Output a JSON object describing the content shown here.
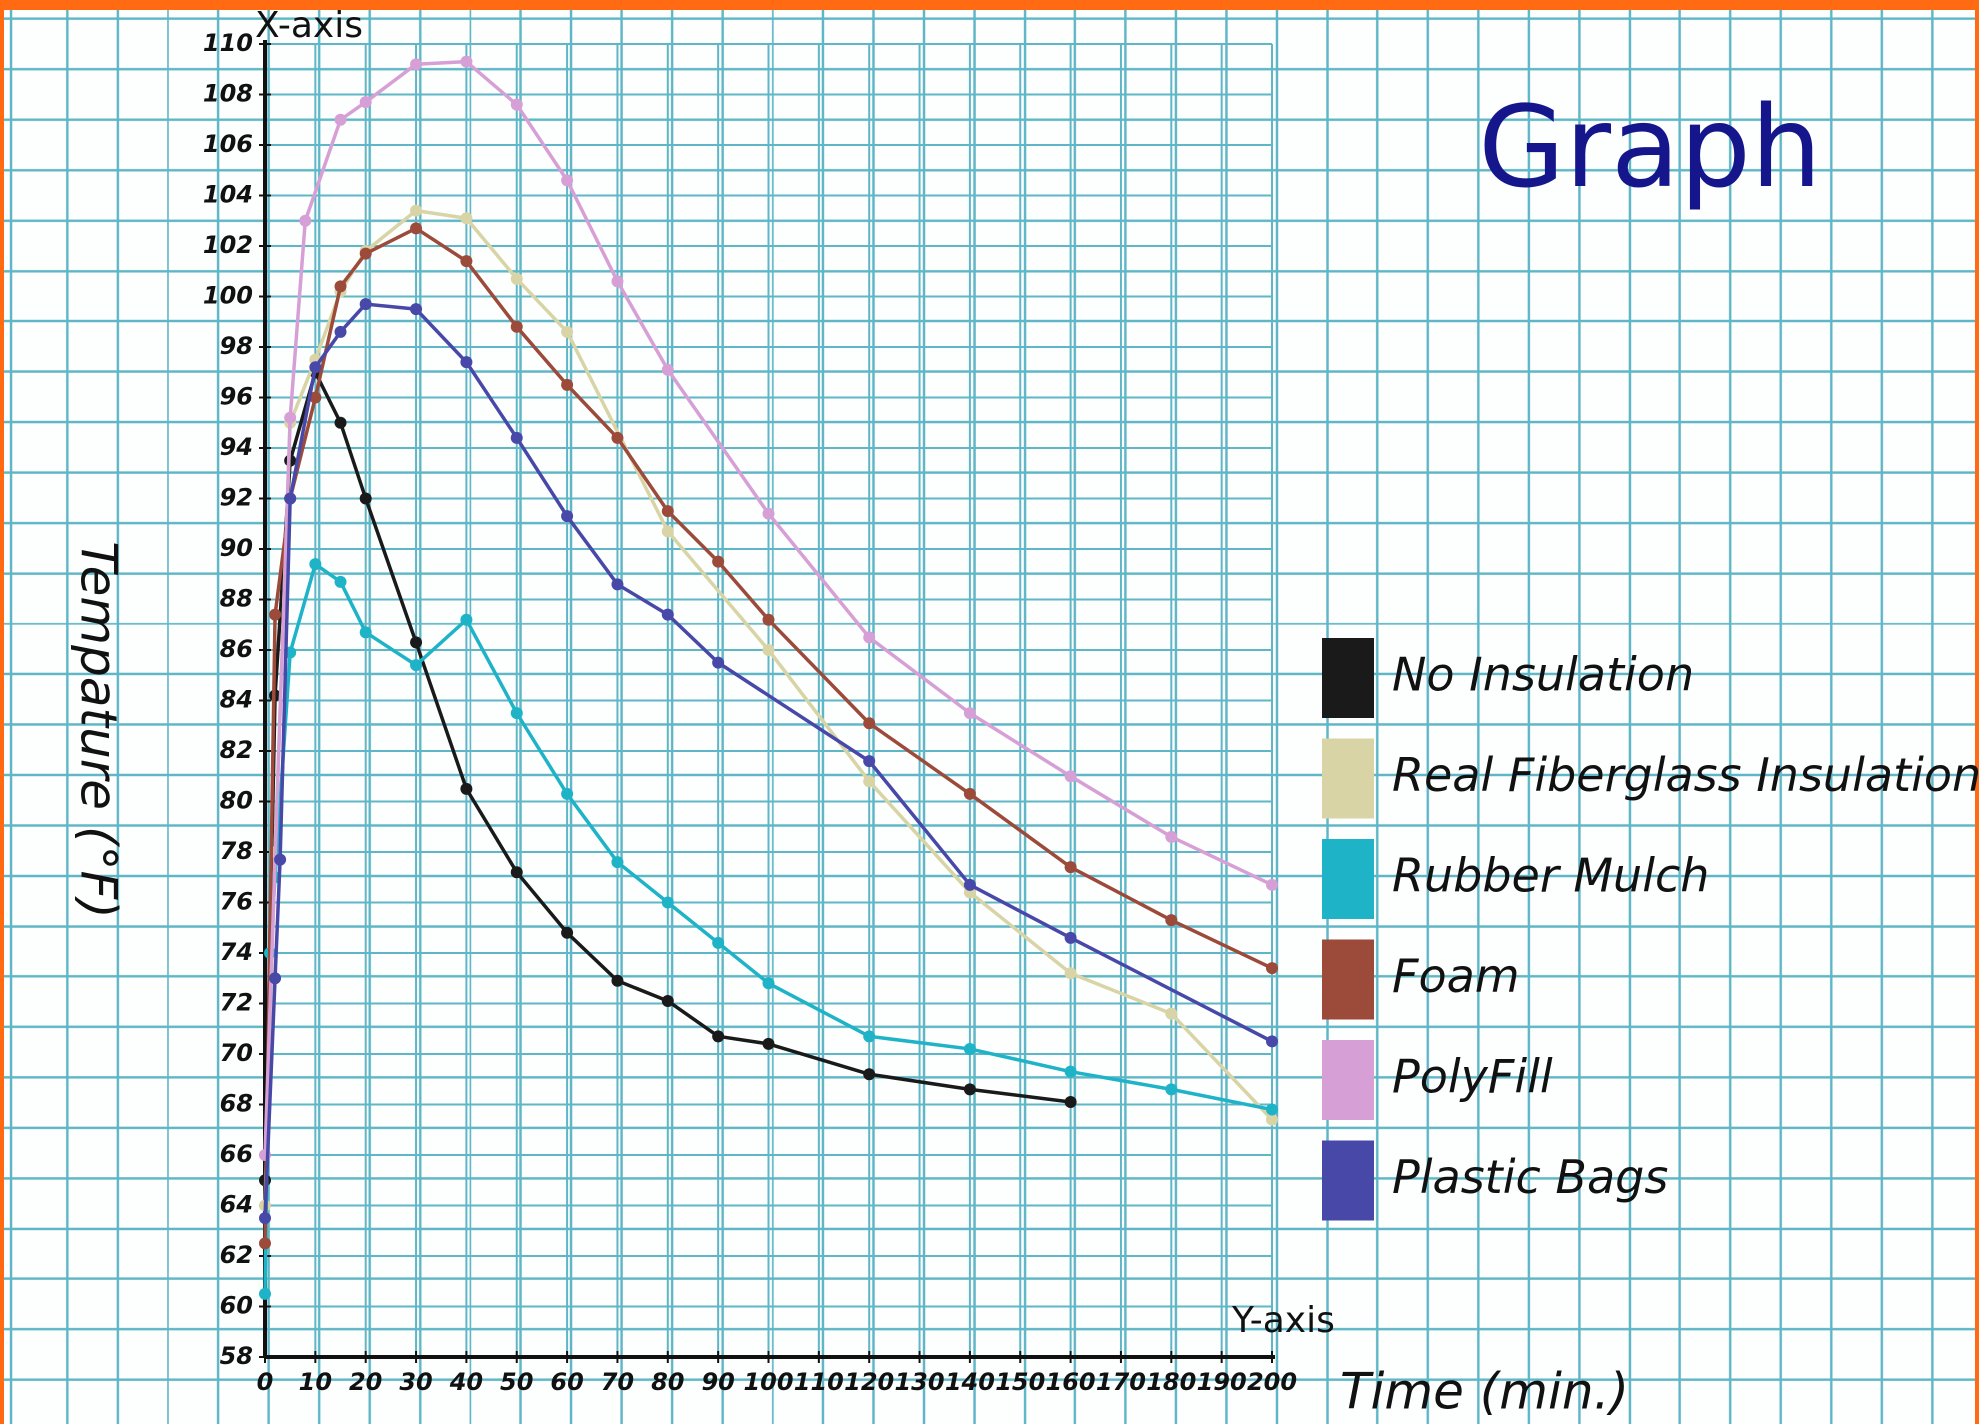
{
  "chart_data": {
    "type": "line",
    "title": "Graph",
    "y_axis_note": "X-axis",
    "x_axis_note": "Y-axis",
    "x_label": "Time (min.)",
    "y_label": "Tempature (°F)",
    "xlim": [
      0,
      200
    ],
    "xticks": [
      0,
      10,
      20,
      30,
      40,
      50,
      60,
      70,
      80,
      90,
      100,
      110,
      120,
      130,
      140,
      150,
      160,
      170,
      180,
      190,
      200
    ],
    "ylim": [
      58,
      110
    ],
    "yticks": [
      58,
      60,
      62,
      64,
      66,
      68,
      70,
      72,
      74,
      76,
      78,
      80,
      82,
      84,
      86,
      88,
      90,
      92,
      94,
      96,
      98,
      100,
      102,
      104,
      106,
      108,
      110
    ],
    "grid": true,
    "legend": "right",
    "series": [
      {
        "name": "No Insulation",
        "color": "#1a1a1a",
        "x": [
          0,
          2,
          5,
          10,
          15,
          20,
          30,
          40,
          50,
          60,
          70,
          80,
          90,
          100,
          120,
          140,
          160
        ],
        "values": [
          65,
          84.2,
          93.5,
          97,
          95,
          92,
          86.3,
          80.5,
          77.2,
          74.8,
          72.9,
          72.1,
          70.7,
          70.4,
          69.2,
          68.6,
          68.1
        ]
      },
      {
        "name": "Real Fiberglass Insulation",
        "color": "#d8d4a6",
        "x": [
          0,
          2,
          5,
          10,
          15,
          20,
          30,
          40,
          50,
          60,
          80,
          100,
          120,
          140,
          160,
          180,
          200
        ],
        "values": [
          64,
          78,
          95,
          97.5,
          100.2,
          101.8,
          103.4,
          103.1,
          100.7,
          98.6,
          90.7,
          86,
          80.8,
          76.4,
          73.2,
          71.6,
          67.4
        ]
      },
      {
        "name": "Rubber Mulch",
        "color": "#1fb3c8",
        "x": [
          0,
          1,
          2,
          5,
          10,
          15,
          20,
          30,
          40,
          50,
          60,
          70,
          80,
          90,
          100,
          120,
          140,
          160,
          180,
          200
        ],
        "values": [
          60.5,
          74,
          77,
          85.9,
          89.4,
          88.7,
          86.7,
          85.4,
          87.2,
          83.5,
          80.3,
          77.6,
          76,
          74.4,
          72.8,
          70.7,
          70.2,
          69.3,
          68.6,
          67.8
        ]
      },
      {
        "name": "Foam",
        "color": "#9c4a3a",
        "x": [
          0,
          2,
          5,
          10,
          15,
          20,
          30,
          40,
          50,
          60,
          70,
          80,
          90,
          100,
          120,
          140,
          160,
          180,
          200
        ],
        "values": [
          62.5,
          87.4,
          92,
          96,
          100.4,
          101.7,
          102.7,
          101.4,
          98.8,
          96.5,
          94.4,
          91.5,
          89.5,
          87.2,
          83.1,
          80.3,
          77.4,
          75.3,
          73.4
        ]
      },
      {
        "name": "PolyFill",
        "color": "#d6a0d6",
        "x": [
          0,
          5,
          8,
          15,
          20,
          30,
          40,
          50,
          60,
          70,
          80,
          100,
          120,
          140,
          160,
          180,
          200
        ],
        "values": [
          66,
          95.2,
          103,
          107,
          107.7,
          109.2,
          109.3,
          107.6,
          104.6,
          100.6,
          97.1,
          91.4,
          86.5,
          83.5,
          81,
          78.6,
          76.7
        ]
      },
      {
        "name": "Plastic Bags",
        "color": "#4848a8",
        "x": [
          0,
          2,
          3,
          5,
          10,
          15,
          20,
          30,
          40,
          50,
          60,
          70,
          80,
          90,
          120,
          140,
          160,
          200
        ],
        "values": [
          63.5,
          73,
          77.7,
          92,
          97.2,
          98.6,
          99.7,
          99.5,
          97.4,
          94.4,
          91.3,
          88.6,
          87.4,
          85.5,
          81.6,
          76.7,
          74.6,
          70.5
        ]
      }
    ]
  }
}
